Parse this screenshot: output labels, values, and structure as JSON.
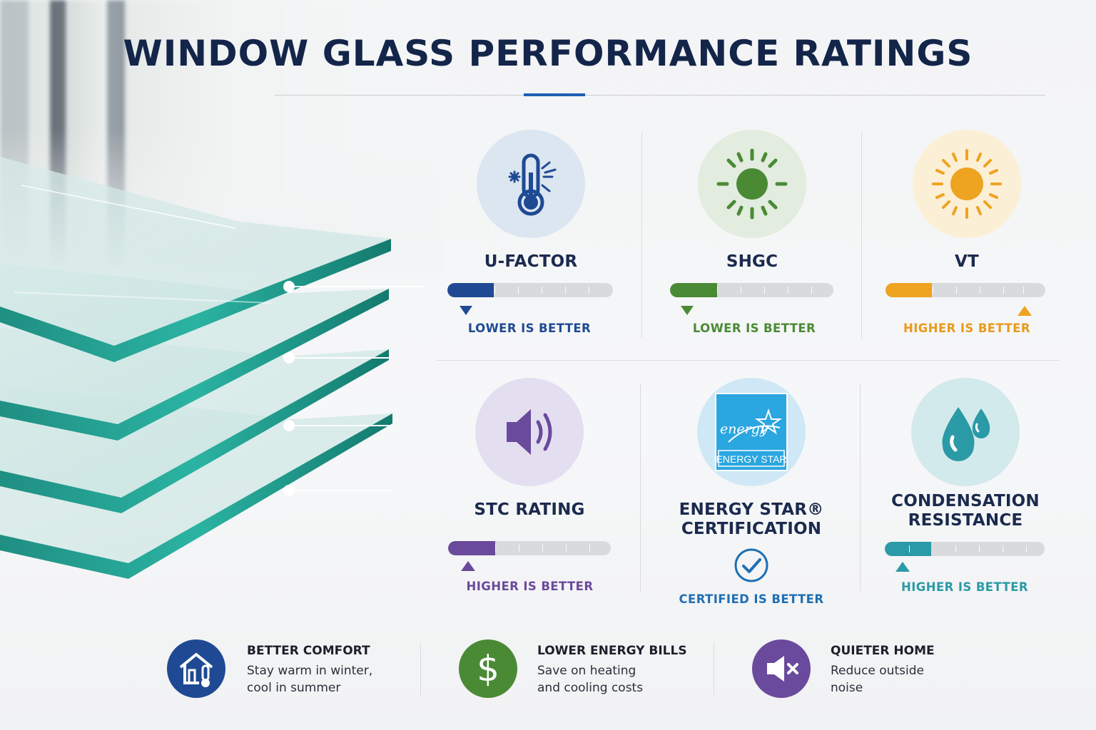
{
  "title": "WINDOW GLASS PERFORMANCE RATINGS",
  "ratings": [
    {
      "label": "U-FACTOR",
      "hint": "LOWER IS BETTER",
      "icon": "thermometer-icon",
      "color": "#1f4a93",
      "level": 0.28,
      "direction": "lower"
    },
    {
      "label": "SHGC",
      "hint": "LOWER IS BETTER",
      "icon": "sun-icon",
      "color": "#4a8a35",
      "level": 0.29,
      "direction": "lower"
    },
    {
      "label": "VT",
      "hint": "HIGHER IS BETTER",
      "icon": "bright-sun-icon",
      "color": "#e8a11f",
      "level": 0.29,
      "direction": "higher"
    },
    {
      "label": "STC RATING",
      "hint": "HIGHER IS BETTER",
      "icon": "speaker-icon",
      "color": "#6a4a9c",
      "level": 0.29,
      "direction": "higher"
    },
    {
      "label_lines": [
        "ENERGY STAR®",
        "CERTIFICATION"
      ],
      "hint": "CERTIFIED IS BETTER",
      "icon": "energy-star-logo",
      "logo_text": "ENERGY STAR",
      "logo_script": "energy",
      "color": "#1f6fb5"
    },
    {
      "label_lines": [
        "CONDENSATION",
        "RESISTANCE"
      ],
      "hint": "HIGHER IS BETTER",
      "icon": "water-drops-icon",
      "color": "#2a9aa6",
      "level": 0.29,
      "direction": "higher"
    }
  ],
  "benefits": [
    {
      "title": "BETTER COMFORT",
      "desc": "Stay warm in winter, cool in summer",
      "icon": "house-thermometer-icon",
      "color": "#1f4a93"
    },
    {
      "title": "LOWER ENERGY BILLS",
      "desc": "Save on heating and cooling costs",
      "icon": "dollar-icon",
      "color": "#4a8a35"
    },
    {
      "title": "QUIETER HOME",
      "desc": "Reduce outside noise",
      "icon": "mute-speaker-icon",
      "color": "#6a4a9c"
    }
  ]
}
